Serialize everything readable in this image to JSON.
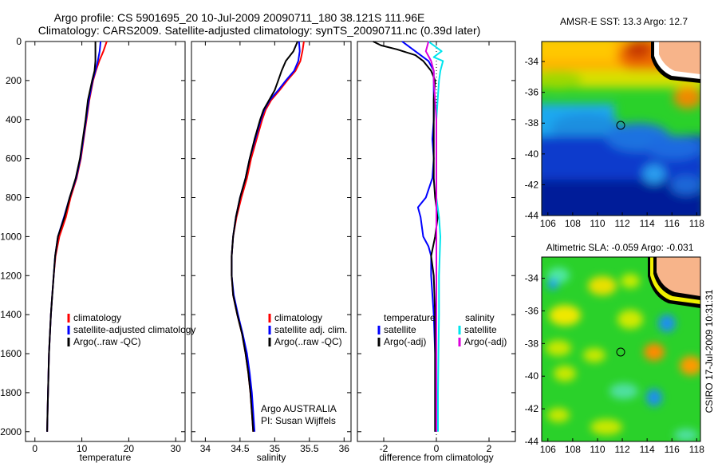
{
  "header": {
    "line1": "Argo profile: CS 5901695_20 10-Jul-2009 20090711_180 38.121S 111.96E",
    "line2": "Climatology: CARS2009. Satellite-adjusted climatology: synTS_20090711.nc (0.39d later)"
  },
  "side_note": "CSIRO 17-Jul-2009 10:31:31",
  "colors": {
    "climatology": "#ff0000",
    "satellite": "#0000ff",
    "argo": "#000000",
    "cyan": "#00e5ee",
    "magenta": "#dd00dd",
    "land": "#f7b48a"
  },
  "chart_data": [
    {
      "type": "line",
      "id": "temperature",
      "xlabel": "temperature",
      "xlim": [
        -2,
        32
      ],
      "ylim": [
        2050,
        0
      ],
      "xticks": [
        "0",
        "10",
        "20",
        "30"
      ],
      "yticks": [
        "0",
        "200",
        "400",
        "600",
        "800",
        "1000",
        "1200",
        "1400",
        "1600",
        "1800",
        "2000"
      ],
      "series": [
        {
          "name": "climatology",
          "color": "#ff0000",
          "depth": [
            0,
            50,
            100,
            150,
            200,
            300,
            400,
            500,
            600,
            700,
            800,
            900,
            1000,
            1100,
            1200,
            1300,
            1400,
            1500,
            1600,
            1700,
            1800,
            1900,
            2000
          ],
          "values": [
            15.3,
            14.6,
            13.7,
            13.0,
            12.4,
            11.6,
            11.0,
            10.4,
            9.8,
            8.9,
            7.6,
            6.6,
            5.2,
            4.4,
            4.0,
            3.7,
            3.4,
            3.2,
            3.0,
            2.9,
            2.8,
            2.7,
            2.6
          ]
        },
        {
          "name": "satellite-adjusted climatology",
          "color": "#0000ff",
          "depth": [
            0,
            50,
            100,
            150,
            200,
            300,
            400,
            500,
            600,
            700,
            800,
            900,
            1000,
            1100,
            1200,
            1300,
            1400,
            1500,
            1600,
            1700,
            1800,
            1900,
            2000
          ],
          "values": [
            14.0,
            13.8,
            13.4,
            12.9,
            12.3,
            11.5,
            10.9,
            10.3,
            9.7,
            8.8,
            7.4,
            6.2,
            4.9,
            4.3,
            4.0,
            3.7,
            3.4,
            3.2,
            3.0,
            2.9,
            2.8,
            2.7,
            2.6
          ]
        },
        {
          "name": "Argo(..raw -QC)",
          "color": "#000000",
          "depth": [
            0,
            50,
            100,
            150,
            200,
            300,
            400,
            500,
            600,
            700,
            800,
            900,
            1000,
            1100,
            1200,
            1300,
            1400,
            1500,
            1600,
            1700,
            1800,
            1900,
            2000
          ],
          "values": [
            12.9,
            12.9,
            12.9,
            12.7,
            12.2,
            11.3,
            10.8,
            10.2,
            9.6,
            8.7,
            7.4,
            6.3,
            4.9,
            4.3,
            4.0,
            3.7,
            3.4,
            3.2,
            3.0,
            2.9,
            2.8,
            2.7,
            2.6
          ]
        }
      ],
      "legend": [
        "climatology",
        "satellite-adjusted climatology",
        "Argo(..raw -QC)"
      ]
    },
    {
      "type": "line",
      "id": "salinity",
      "xlabel": "salinity",
      "xlim": [
        33.8,
        36.1
      ],
      "ylim": [
        2050,
        0
      ],
      "xticks": [
        "34",
        "34.5",
        "35",
        "35.5",
        "36"
      ],
      "series": [
        {
          "name": "climatology",
          "color": "#ff0000",
          "depth": [
            0,
            50,
            100,
            150,
            200,
            250,
            300,
            350,
            400,
            500,
            600,
            700,
            800,
            900,
            1000,
            1100,
            1200,
            1300,
            1400,
            1500,
            1600,
            1700,
            1800,
            1900,
            2000
          ],
          "values": [
            35.42,
            35.4,
            35.37,
            35.3,
            35.18,
            35.07,
            34.95,
            34.87,
            34.82,
            34.74,
            34.66,
            34.6,
            34.52,
            34.45,
            34.4,
            34.38,
            34.38,
            34.4,
            34.46,
            34.53,
            34.58,
            34.62,
            34.65,
            34.67,
            34.69
          ]
        },
        {
          "name": "satellite adj. clim.",
          "color": "#0000ff",
          "depth": [
            0,
            50,
            100,
            150,
            200,
            250,
            300,
            350,
            400,
            500,
            600,
            700,
            800,
            900,
            1000,
            1100,
            1200,
            1300,
            1400,
            1500,
            1600,
            1700,
            1800,
            1900,
            2000
          ],
          "values": [
            35.35,
            35.36,
            35.34,
            35.28,
            35.16,
            35.05,
            34.93,
            34.85,
            34.8,
            34.72,
            34.64,
            34.58,
            34.5,
            34.44,
            34.4,
            34.38,
            34.38,
            34.41,
            34.47,
            34.54,
            34.6,
            34.64,
            34.67,
            34.69,
            34.71
          ]
        },
        {
          "name": "Argo(..raw -QC)",
          "color": "#000000",
          "depth": [
            0,
            50,
            100,
            150,
            200,
            250,
            300,
            350,
            400,
            500,
            600,
            700,
            800,
            900,
            1000,
            1100,
            1200,
            1300,
            1400,
            1500,
            1600,
            1700,
            1800,
            1900,
            2000
          ],
          "values": [
            35.33,
            35.27,
            35.16,
            35.1,
            35.05,
            35.0,
            34.92,
            34.84,
            34.79,
            34.71,
            34.64,
            34.58,
            34.5,
            34.44,
            34.4,
            34.38,
            34.38,
            34.4,
            34.46,
            34.53,
            34.58,
            34.62,
            34.65,
            34.67,
            34.69
          ]
        }
      ],
      "legend": [
        "climatology",
        "satellite adj. clim.",
        "Argo(..raw -QC)"
      ],
      "annotation": [
        "Argo AUSTRALIA",
        "PI: Susan Wijffels"
      ]
    },
    {
      "type": "line",
      "id": "difference",
      "xlabel": "difference from climatology",
      "xlim": [
        -3.0,
        3.0
      ],
      "ylim": [
        2050,
        0
      ],
      "xticks": [
        "-2",
        "0",
        "2"
      ],
      "series": [
        {
          "name": "temperature satellite",
          "color": "#0000ff",
          "depth": [
            0,
            100,
            150,
            200,
            250,
            300,
            400,
            500,
            600,
            700,
            800,
            850,
            900,
            1000,
            1050,
            1100,
            1200,
            1400,
            1600,
            1800,
            2000
          ],
          "values": [
            -1.3,
            -0.3,
            -0.1,
            -0.1,
            -0.1,
            -0.1,
            -0.1,
            -0.15,
            -0.1,
            -0.15,
            -0.4,
            -0.7,
            -0.6,
            -0.5,
            -0.3,
            -0.2,
            -0.2,
            -0.1,
            -0.05,
            -0.05,
            -0.05
          ]
        },
        {
          "name": "temperature Argo(-adj)",
          "color": "#000000",
          "depth": [
            0,
            20,
            40,
            70,
            100,
            150,
            200,
            300,
            500,
            700,
            800,
            900,
            1000,
            1100,
            1200,
            1400,
            1600,
            1800,
            2000
          ],
          "values": [
            -2.4,
            -2.1,
            -1.5,
            -0.8,
            -0.5,
            -0.2,
            -0.05,
            -0.1,
            -0.1,
            -0.1,
            -0.05,
            0.05,
            -0.05,
            -0.2,
            -0.1,
            -0.05,
            -0.05,
            -0.05,
            -0.05
          ]
        },
        {
          "name": "salinity satellite",
          "color": "#00e5ee",
          "depth": [
            0,
            50,
            80,
            100,
            150,
            200,
            300,
            400,
            500,
            600,
            700,
            800,
            900,
            1000,
            1200,
            1400,
            1600,
            1800,
            2000
          ],
          "values": [
            -0.3,
            0.2,
            -0.1,
            0.25,
            0.15,
            0.1,
            0.05,
            0.0,
            0.0,
            0.0,
            0.0,
            0.0,
            0.1,
            0.15,
            0.1,
            0.1,
            0.08,
            0.06,
            0.06
          ]
        },
        {
          "name": "salinity Argo(-adj)",
          "color": "#dd00dd",
          "depth": [
            0,
            50,
            100,
            150,
            200,
            300,
            400,
            500,
            600,
            800,
            1000,
            1200,
            1400,
            1600,
            1800,
            2000
          ],
          "values": [
            -0.3,
            -0.4,
            -0.2,
            -0.1,
            -0.1,
            -0.05,
            0.0,
            0.0,
            0.0,
            0.0,
            0.0,
            0.0,
            0.0,
            0.0,
            0.0,
            0.0
          ]
        }
      ],
      "legend_headers": [
        "temperature",
        "salinity"
      ],
      "legend": [
        "satellite",
        "Argo(-adj)",
        "satellite",
        "Argo(-adj)"
      ]
    },
    {
      "type": "heatmap",
      "id": "sst-map",
      "title": "AMSR-E SST: 13.3 Argo: 12.7",
      "xlim": [
        105.5,
        118.3
      ],
      "ylim": [
        -44,
        -32.7
      ],
      "xticks": [
        "106",
        "108",
        "110",
        "112",
        "114",
        "116",
        "118"
      ],
      "yticks": [
        "-34",
        "-36",
        "-38",
        "-40",
        "-42",
        "-44"
      ],
      "profile_location": [
        111.96,
        -38.121
      ]
    },
    {
      "type": "heatmap",
      "id": "sla-map",
      "title": "Altimetric SLA: -0.059 Argo: -0.031",
      "xlim": [
        105.5,
        118.3
      ],
      "ylim": [
        -44,
        -32.7
      ],
      "xticks": [
        "106",
        "108",
        "110",
        "112",
        "114",
        "116",
        "118"
      ],
      "yticks": [
        "-34",
        "-36",
        "-38",
        "-40",
        "-42",
        "-44"
      ],
      "profile_location": [
        111.96,
        -38.121
      ]
    }
  ]
}
